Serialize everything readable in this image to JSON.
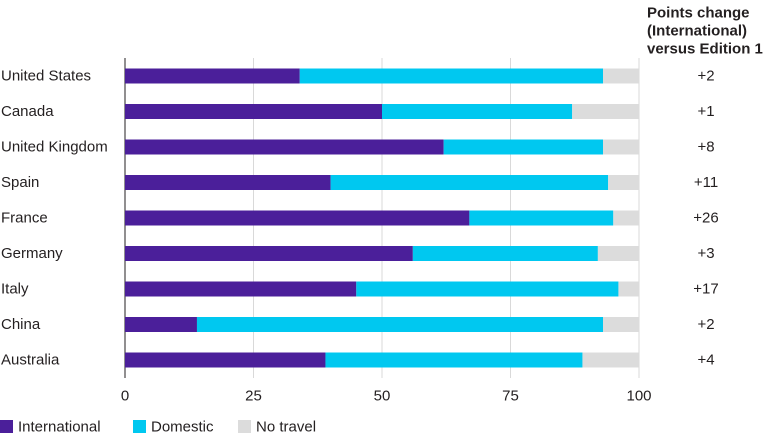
{
  "chart_data": {
    "type": "bar",
    "orientation": "horizontal",
    "stacked": true,
    "categories": [
      "United States",
      "Canada",
      "United Kingdom",
      "Spain",
      "France",
      "Germany",
      "Italy",
      "China",
      "Australia"
    ],
    "series": [
      {
        "name": "International",
        "color": "#4b1f9a",
        "values": [
          34,
          50,
          62,
          40,
          67,
          56,
          45,
          14,
          39
        ]
      },
      {
        "name": "Domestic",
        "color": "#00c8f0",
        "values": [
          59,
          37,
          31,
          54,
          28,
          36,
          51,
          79,
          50
        ]
      },
      {
        "name": "No travel",
        "color": "#dcdcdc",
        "values": [
          7,
          13,
          7,
          6,
          5,
          8,
          4,
          7,
          11
        ]
      }
    ],
    "xlim": [
      0,
      100
    ],
    "xticks": [
      "0",
      "25",
      "50",
      "75",
      "100"
    ],
    "grid": "vertical",
    "legend_position": "bottom-left",
    "change_column": {
      "title_lines": [
        "Points change",
        "(International)",
        "versus Edition 1"
      ],
      "values": [
        "+2",
        "+1",
        "+8",
        "+11",
        "+26",
        "+3",
        "+17",
        "+2",
        "+4"
      ]
    }
  }
}
